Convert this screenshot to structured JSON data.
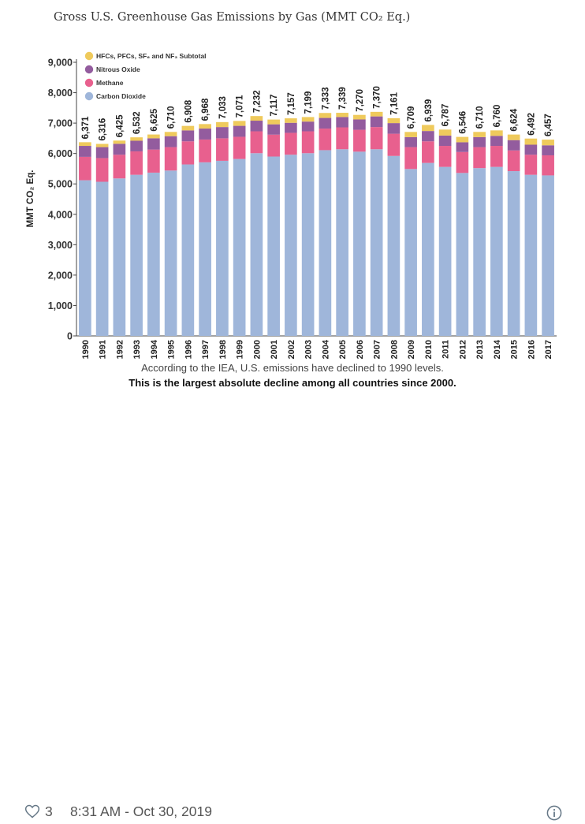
{
  "chart_data": {
    "type": "bar",
    "stacked": true,
    "title": "Gross U.S. Greenhouse Gas Emissions by Gas (MMT CO₂ Eq.)",
    "ylabel": "MMT CO₂ Eq.",
    "ylim": [
      0,
      9500
    ],
    "yticks": [
      "0",
      "1,000",
      "2,000",
      "3,000",
      "4,000",
      "5,000",
      "6,000",
      "7,000",
      "8,000",
      "9,000"
    ],
    "legend_position": "top-left",
    "categories": [
      "1990",
      "1991",
      "1992",
      "1993",
      "1994",
      "1995",
      "1996",
      "1997",
      "1998",
      "1999",
      "2000",
      "2001",
      "2002",
      "2003",
      "2004",
      "2005",
      "2006",
      "2007",
      "2008",
      "2009",
      "2010",
      "2011",
      "2012",
      "2013",
      "2014",
      "2015",
      "2016",
      "2017"
    ],
    "totals_labels": [
      "6,371",
      "6,316",
      "6,425",
      "6,532",
      "6,625",
      "6,710",
      "6,908",
      "6,968",
      "7,033",
      "7,071",
      "7,232",
      "7,117",
      "7,157",
      "7,199",
      "7,333",
      "7,339",
      "7,270",
      "7,370",
      "7,161",
      "6,709",
      "6,939",
      "6,787",
      "6,546",
      "6,710",
      "6,760",
      "6,624",
      "6,492",
      "6,457"
    ],
    "totals": [
      6371,
      6316,
      6425,
      6532,
      6625,
      6710,
      6908,
      6968,
      7033,
      7071,
      7232,
      7117,
      7157,
      7199,
      7333,
      7339,
      7270,
      7370,
      7161,
      6709,
      6939,
      6787,
      6546,
      6710,
      6760,
      6624,
      6492,
      6457
    ],
    "series": [
      {
        "name": "Carbon Dioxide",
        "color": "#9fb6da",
        "values": [
          5120,
          5070,
          5180,
          5300,
          5370,
          5440,
          5640,
          5710,
          5760,
          5820,
          6010,
          5900,
          5960,
          6010,
          6110,
          6140,
          6060,
          6140,
          5920,
          5490,
          5690,
          5560,
          5360,
          5520,
          5560,
          5420,
          5300,
          5280
        ]
      },
      {
        "name": "Methane",
        "color": "#e8608e",
        "values": [
          770,
          780,
          780,
          770,
          760,
          770,
          760,
          750,
          740,
          730,
          720,
          720,
          720,
          720,
          710,
          720,
          720,
          730,
          730,
          720,
          710,
          690,
          690,
          690,
          690,
          680,
          660,
          660
        ]
      },
      {
        "name": "Nitrous Oxide",
        "color": "#935c9e",
        "values": [
          360,
          360,
          360,
          350,
          370,
          360,
          360,
          360,
          370,
          360,
          350,
          340,
          330,
          320,
          350,
          340,
          340,
          350,
          350,
          330,
          340,
          340,
          320,
          330,
          330,
          340,
          330,
          330
        ]
      },
      {
        "name": "HFCs, PFCs, SF₆ and NF₃ Subtotal",
        "color": "#efca5c",
        "values": [
          121,
          106,
          105,
          112,
          125,
          140,
          148,
          148,
          163,
          161,
          152,
          157,
          147,
          149,
          163,
          139,
          150,
          150,
          161,
          169,
          199,
          197,
          176,
          170,
          180,
          184,
          202,
          187
        ]
      }
    ]
  },
  "captions": {
    "line1": "According to the IEA, U.S. emissions have declined to 1990 levels.",
    "line2": "This is the largest absolute decline among all countries since 2000."
  },
  "footer": {
    "likes_count": "3",
    "timestamp": "8:31 AM - Oct 30, 2019",
    "icons": [
      "heart-icon",
      "info-icon"
    ]
  }
}
